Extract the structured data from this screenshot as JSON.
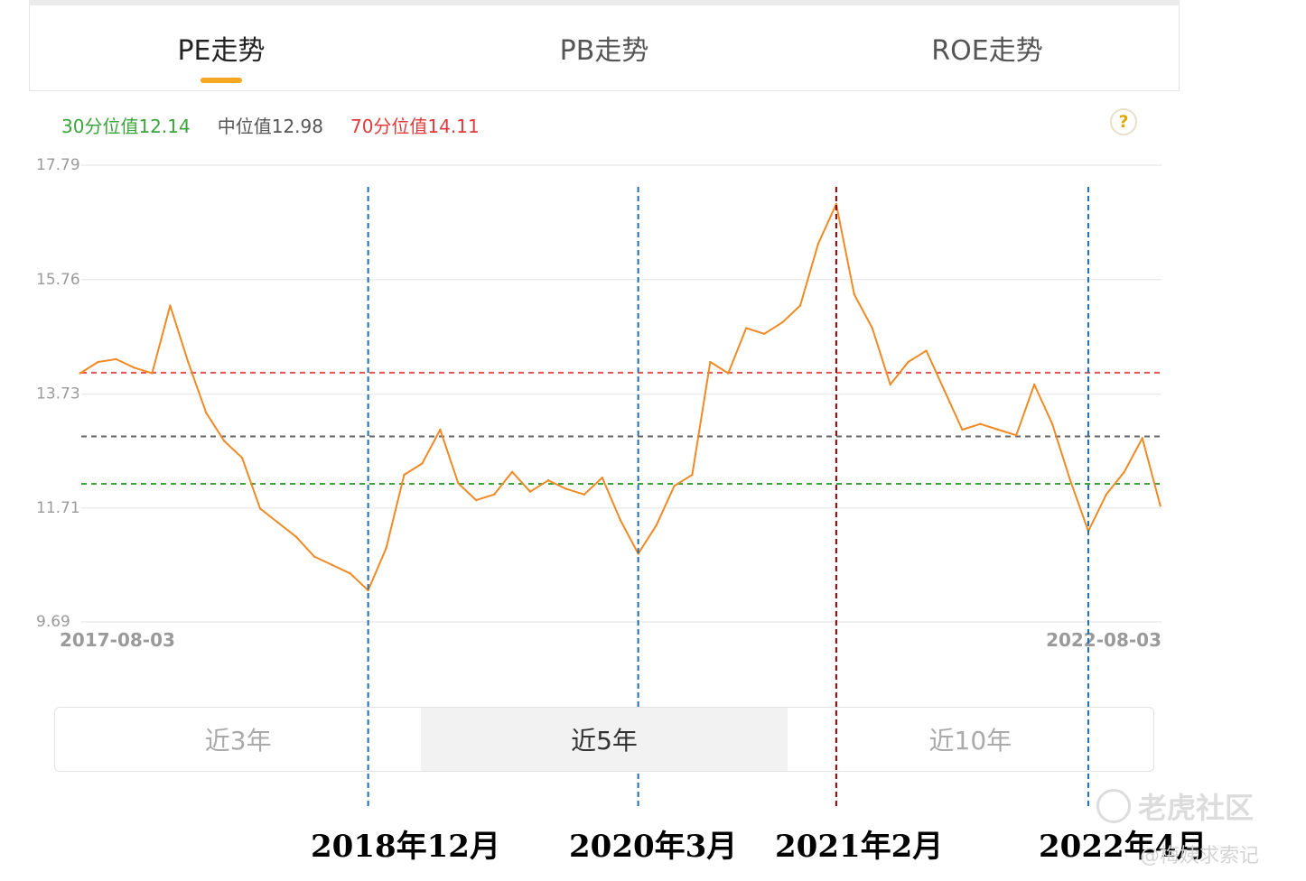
{
  "tabs": [
    {
      "label": "PE走势",
      "active": true
    },
    {
      "label": "PB走势",
      "active": false
    },
    {
      "label": "ROE走势",
      "active": false
    }
  ],
  "legend": {
    "p30": {
      "label": "30分位值12.14",
      "color": "#3aa53a"
    },
    "median": {
      "label": "中位值12.98",
      "color": "#555555"
    },
    "p70": {
      "label": "70分位值14.11",
      "color": "#e03a3a"
    }
  },
  "help_label": "?",
  "range_buttons": [
    {
      "label": "近3年",
      "active": false
    },
    {
      "label": "近5年",
      "active": true
    },
    {
      "label": "近10年",
      "active": false
    }
  ],
  "annotations": [
    {
      "label": "2018年12月",
      "date": "2018-12",
      "color": "#1f6fb0"
    },
    {
      "label": "2020年3月",
      "date": "2020-03",
      "color": "#1f6fb0"
    },
    {
      "label": "2021年2月",
      "date": "2021-02",
      "color": "#8b0000"
    },
    {
      "label": "2022年4月",
      "date": "2022-04",
      "color": "#1f6fb0"
    }
  ],
  "watermark": {
    "name": "老虎社区",
    "author": "@梅姨求索记"
  },
  "chart_data": {
    "type": "line",
    "series": [
      {
        "color": "#f08a24"
      }
    ],
    "x_start_label": "2017-08-03",
    "x_end_label": "2022-08-03",
    "yticks": [
      "17.79",
      "15.76",
      "13.73",
      "11.71",
      "9.69"
    ],
    "ylim": [
      9.69,
      17.79
    ],
    "reference_lines": [
      {
        "value": 14.11,
        "color": "#e8514f"
      },
      {
        "value": 12.98,
        "color": "#666666"
      },
      {
        "value": 12.14,
        "color": "#3aa53a"
      }
    ],
    "x": [
      "2017-08",
      "2017-09",
      "2017-10",
      "2017-11",
      "2017-12",
      "2018-01",
      "2018-02",
      "2018-03",
      "2018-04",
      "2018-05",
      "2018-06",
      "2018-07",
      "2018-08",
      "2018-09",
      "2018-10",
      "2018-11",
      "2018-12",
      "2019-01",
      "2019-02",
      "2019-03",
      "2019-04",
      "2019-05",
      "2019-06",
      "2019-07",
      "2019-08",
      "2019-09",
      "2019-10",
      "2019-11",
      "2019-12",
      "2020-01",
      "2020-02",
      "2020-03",
      "2020-04",
      "2020-05",
      "2020-06",
      "2020-07",
      "2020-08",
      "2020-09",
      "2020-10",
      "2020-11",
      "2020-12",
      "2021-01",
      "2021-02",
      "2021-03",
      "2021-04",
      "2021-05",
      "2021-06",
      "2021-07",
      "2021-08",
      "2021-09",
      "2021-10",
      "2021-11",
      "2021-12",
      "2022-01",
      "2022-02",
      "2022-03",
      "2022-04",
      "2022-05",
      "2022-06",
      "2022-07",
      "2022-08"
    ],
    "values": [
      14.1,
      14.3,
      14.35,
      14.2,
      14.1,
      15.3,
      14.3,
      13.4,
      12.9,
      12.6,
      11.7,
      11.45,
      11.2,
      10.85,
      10.7,
      10.55,
      10.25,
      11.0,
      12.3,
      12.5,
      13.1,
      12.15,
      11.85,
      11.95,
      12.35,
      12.0,
      12.2,
      12.05,
      11.95,
      12.25,
      11.5,
      10.9,
      11.4,
      12.1,
      12.3,
      14.3,
      14.1,
      14.9,
      14.8,
      15.0,
      15.3,
      16.4,
      17.1,
      15.5,
      14.9,
      13.9,
      14.3,
      14.5,
      13.8,
      13.1,
      13.2,
      13.1,
      13.0,
      13.9,
      13.2,
      12.2,
      11.3,
      11.95,
      12.35,
      12.95,
      11.75
    ]
  }
}
